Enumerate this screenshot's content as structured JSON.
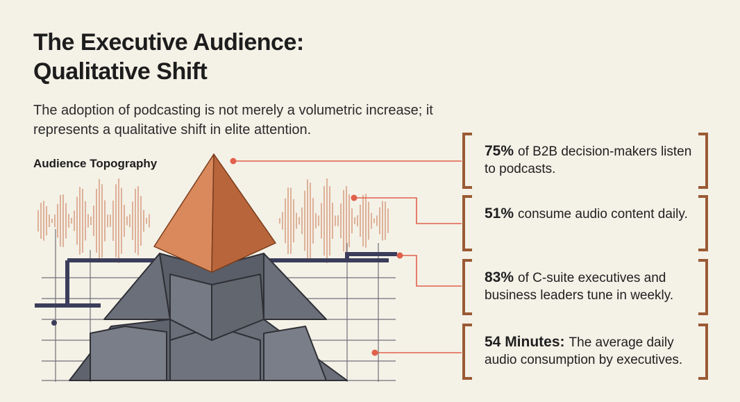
{
  "header": {
    "title": "The Executive Audience: Qualitative Shift",
    "subtitle": "The adoption of podcasting is not merely a volumetric increase; it represents a qualitative shift in elite attention."
  },
  "illustration": {
    "label": "Audience Topography"
  },
  "stats": [
    {
      "highlight": "75%",
      "text": "of B2B decision-makers listen to podcasts."
    },
    {
      "highlight": "51%",
      "text": "consume audio content daily."
    },
    {
      "highlight": "83%",
      "text": "of C-suite executives and business leaders tune in weekly."
    },
    {
      "highlight": "54 Minutes:",
      "text": "The average daily audio consumption by executives."
    }
  ]
}
